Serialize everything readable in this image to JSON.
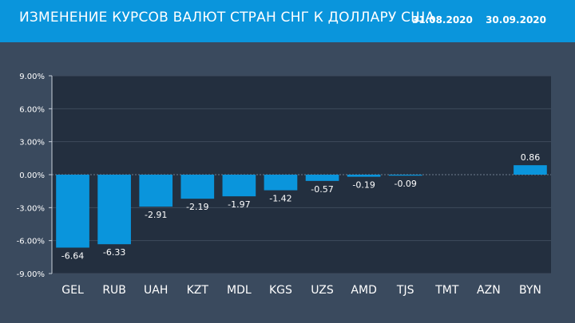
{
  "header": {
    "title": "ИЗМЕНЕНИЕ КУРСОВ ВАЛЮТ СТРАН СНГ К ДОЛЛАРУ США",
    "date_from": "31.08.2020",
    "date_to": "30.09.2020"
  },
  "colors": {
    "header_bg": "#0a95dc",
    "page_bg": "#3a4a5e",
    "plot_bg": "#232f3f",
    "bar": "#0a95dc",
    "text": "#ffffff"
  },
  "chart_data": {
    "type": "bar",
    "categories": [
      "GEL",
      "RUB",
      "UAH",
      "KZT",
      "MDL",
      "KGS",
      "UZS",
      "AMD",
      "TJS",
      "TMT",
      "AZN",
      "BYN"
    ],
    "values": [
      -6.64,
      -6.33,
      -2.91,
      -2.19,
      -1.97,
      -1.42,
      -0.57,
      -0.19,
      -0.09,
      null,
      null,
      0.86
    ],
    "value_labels": [
      "-6.64",
      "-6.33",
      "-2.91",
      "-2.19",
      "-1.97",
      "-1.42",
      "-0.57",
      "-0.19",
      "-0.09",
      "",
      "",
      "0.86"
    ],
    "yticks": [
      9,
      6,
      3,
      0,
      -3,
      -6,
      -9
    ],
    "ytick_labels": [
      "9.00%",
      "6.00%",
      "3.00%",
      "0.00%",
      "-3.00%",
      "-6.00%",
      "-9.00%"
    ],
    "ylim": [
      -9,
      9
    ],
    "grid": true,
    "legend": "none"
  }
}
